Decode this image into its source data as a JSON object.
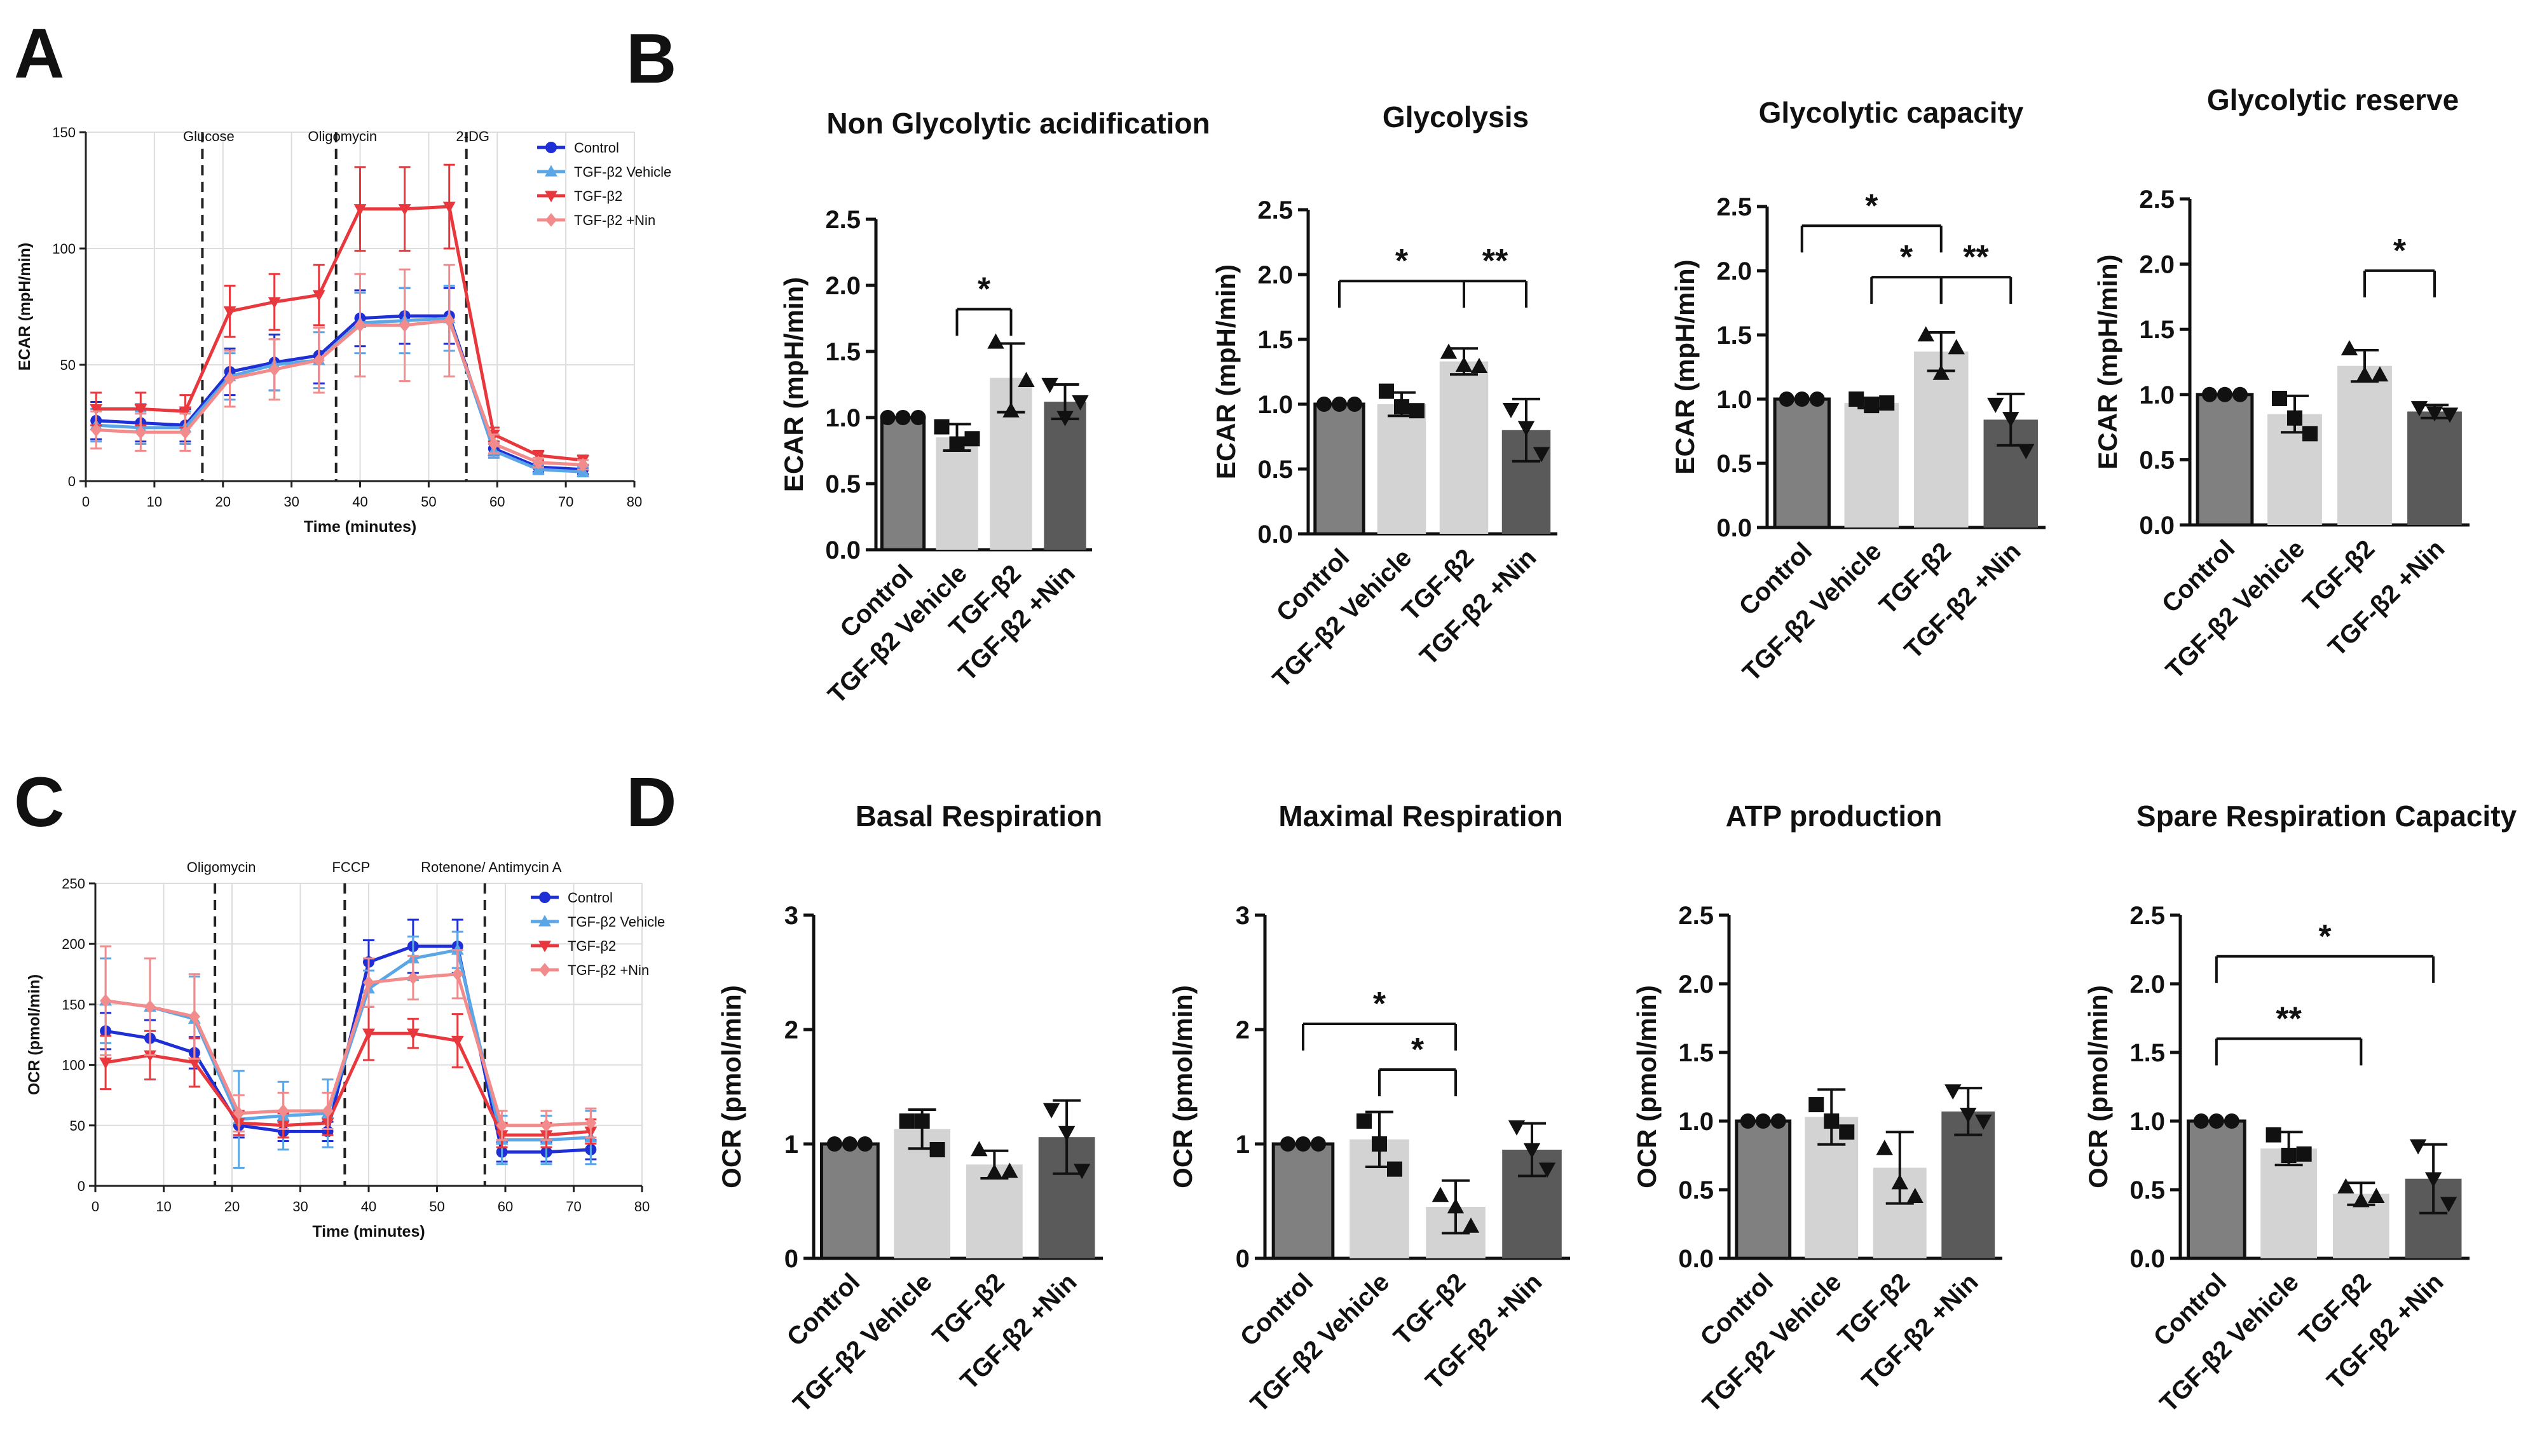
{
  "panel_labels": {
    "A": "A",
    "B": "B",
    "C": "C",
    "D": "D"
  },
  "colors": {
    "control": "#1f2fd6",
    "vehicle": "#5aa6e6",
    "tgf": "#e8383d",
    "nin": "#f28b8b",
    "bar_control": "#808080",
    "bar_vehicle": "#d3d3d3",
    "bar_tgf": "#d3d3d3",
    "bar_nin": "#5a5a5a"
  },
  "chart_data": [
    {
      "id": "A",
      "type": "line",
      "xlabel": "Time (minutes)",
      "ylabel": "ECAR (mpH/min)",
      "xlim": [
        0,
        80
      ],
      "ylim": [
        0,
        150
      ],
      "xticks": [
        0,
        10,
        20,
        30,
        40,
        50,
        60,
        70,
        80
      ],
      "yticks": [
        0,
        50,
        100,
        150
      ],
      "grid": true,
      "injections": [
        {
          "label": "Glucose",
          "x": 17
        },
        {
          "label": "Oligomycin",
          "x": 36.5
        },
        {
          "label": "2-DG",
          "x": 55.5
        }
      ],
      "x": [
        1.5,
        8,
        14.5,
        21,
        27.5,
        34,
        40,
        46.5,
        53,
        59.5,
        66,
        72.5
      ],
      "series": [
        {
          "name": "Control",
          "color_key": "control",
          "marker": "circle",
          "values": [
            26,
            25,
            24,
            47,
            51,
            54,
            70,
            71,
            71,
            14,
            6,
            5
          ],
          "errors": [
            8,
            8,
            7,
            10,
            12,
            12,
            12,
            12,
            12,
            3,
            2,
            2
          ]
        },
        {
          "name": "TGF-β2 Vehicle",
          "color_key": "vehicle",
          "marker": "triangle-up",
          "values": [
            24,
            23,
            23,
            45,
            50,
            52,
            68,
            69,
            70,
            13,
            5,
            4
          ],
          "errors": [
            7,
            7,
            7,
            10,
            11,
            12,
            13,
            14,
            14,
            3,
            2,
            2
          ]
        },
        {
          "name": "TGF-β2",
          "color_key": "tgf",
          "marker": "triangle-down",
          "values": [
            31,
            31,
            30,
            73,
            77,
            80,
            117,
            117,
            118,
            20,
            11,
            9
          ],
          "errors": [
            7,
            7,
            7,
            11,
            12,
            13,
            18,
            18,
            18,
            3,
            2,
            2
          ]
        },
        {
          "name": "TGF-β2 +Nin",
          "color_key": "nin",
          "marker": "diamond",
          "values": [
            22,
            21,
            21,
            44,
            48,
            52,
            67,
            67,
            69,
            16,
            8,
            7
          ],
          "errors": [
            8,
            8,
            8,
            12,
            13,
            14,
            22,
            24,
            24,
            4,
            2,
            2
          ]
        }
      ]
    },
    {
      "id": "C",
      "type": "line",
      "xlabel": "Time (minutes)",
      "ylabel": "OCR (pmol/min)",
      "xlim": [
        0,
        80
      ],
      "ylim": [
        0,
        250
      ],
      "xticks": [
        0,
        10,
        20,
        30,
        40,
        50,
        60,
        70,
        80
      ],
      "yticks": [
        0,
        50,
        100,
        150,
        200,
        250
      ],
      "grid": true,
      "injections": [
        {
          "label": "Oligomycin",
          "x": 17.5
        },
        {
          "label": "FCCP",
          "x": 36.5
        },
        {
          "label": "Rotenone/ Antimycin A",
          "x": 57
        }
      ],
      "x": [
        1.5,
        8,
        14.5,
        21,
        27.5,
        34,
        40,
        46.5,
        53,
        59.5,
        66,
        72.5
      ],
      "series": [
        {
          "name": "Control",
          "color_key": "control",
          "marker": "circle",
          "values": [
            128,
            122,
            110,
            50,
            45,
            45,
            185,
            198,
            198,
            28,
            28,
            30
          ],
          "errors": [
            15,
            15,
            13,
            10,
            8,
            8,
            18,
            22,
            22,
            8,
            8,
            8
          ]
        },
        {
          "name": "TGF-β2 Vehicle",
          "color_key": "vehicle",
          "marker": "triangle-up",
          "values": [
            153,
            148,
            138,
            55,
            58,
            60,
            163,
            188,
            195,
            38,
            38,
            40
          ],
          "errors": [
            35,
            40,
            35,
            40,
            28,
            28,
            15,
            18,
            15,
            20,
            20,
            22
          ]
        },
        {
          "name": "TGF-β2",
          "color_key": "tgf",
          "marker": "triangle-down",
          "values": [
            102,
            108,
            102,
            52,
            50,
            52,
            126,
            126,
            120,
            42,
            42,
            45
          ],
          "errors": [
            22,
            20,
            20,
            10,
            10,
            10,
            22,
            12,
            22,
            10,
            10,
            10
          ]
        },
        {
          "name": "TGF-β2 +Nin",
          "color_key": "nin",
          "marker": "diamond",
          "values": [
            153,
            148,
            140,
            60,
            62,
            62,
            168,
            172,
            175,
            50,
            50,
            52
          ],
          "errors": [
            45,
            40,
            35,
            15,
            15,
            15,
            20,
            18,
            20,
            12,
            12,
            12
          ]
        }
      ]
    },
    {
      "id": "B1",
      "type": "bar",
      "title": "Non Glycolytic acidification",
      "ylabel": "ECAR (mpH/min)",
      "ylim": [
        0,
        2.5
      ],
      "ytick_labels": [
        "0.0",
        "0.5",
        "1.0",
        "1.5",
        "2.0",
        "2.5"
      ],
      "categories": [
        "Control",
        "TGF-β2 Vehicle",
        "TGF-β2",
        "TGF-β2 +Nin"
      ],
      "values": [
        1.0,
        0.85,
        1.3,
        1.12
      ],
      "errors": [
        0.0,
        0.1,
        0.26,
        0.13
      ],
      "points": [
        [
          1.0,
          1.0,
          1.0
        ],
        [
          0.93,
          0.8,
          0.84
        ],
        [
          1.57,
          1.05,
          1.28
        ],
        [
          1.25,
          1.0,
          1.12
        ]
      ],
      "markers": [
        "circle",
        "square",
        "triangle-up",
        "triangle-down"
      ],
      "brackets": [
        {
          "from": 1,
          "to": 2,
          "y": 1.82,
          "label": "*",
          "ticks": "both"
        }
      ]
    },
    {
      "id": "B2",
      "type": "bar",
      "title": "Glycolysis",
      "ylabel": "ECAR (mpH/min)",
      "ylim": [
        0,
        2.5
      ],
      "ytick_labels": [
        "0.0",
        "0.5",
        "1.0",
        "1.5",
        "2.0",
        "2.5"
      ],
      "categories": [
        "Control",
        "TGF-β2 Vehicle",
        "TGF-β2",
        "TGF-β2 +Nin"
      ],
      "values": [
        1.0,
        1.0,
        1.33,
        0.8
      ],
      "errors": [
        0.0,
        0.09,
        0.1,
        0.24
      ],
      "points": [
        [
          1.0,
          1.0,
          1.0
        ],
        [
          1.1,
          0.98,
          0.95
        ],
        [
          1.4,
          1.3,
          1.29
        ],
        [
          0.96,
          0.82,
          0.62
        ]
      ],
      "markers": [
        "circle",
        "square",
        "triangle-up",
        "triangle-down"
      ],
      "brackets": [
        {
          "from": 0,
          "to": 2,
          "y": 1.95,
          "label": "*",
          "ticks": "both"
        },
        {
          "from": 2,
          "to": 3,
          "y": 1.95,
          "label": "**",
          "ticks": "both"
        }
      ]
    },
    {
      "id": "B3",
      "type": "bar",
      "title": "Glycolytic capacity",
      "ylabel": "ECAR (mpH/min)",
      "ylim": [
        0,
        2.5
      ],
      "ytick_labels": [
        "0.0",
        "0.5",
        "1.0",
        "1.5",
        "2.0",
        "2.5"
      ],
      "categories": [
        "Control",
        "TGF-β2 Vehicle",
        "TGF-β2",
        "TGF-β2 +Nin"
      ],
      "values": [
        1.0,
        0.97,
        1.37,
        0.84
      ],
      "errors": [
        0.0,
        0.04,
        0.15,
        0.2
      ],
      "points": [
        [
          1.0,
          1.0,
          1.0
        ],
        [
          1.0,
          0.95,
          0.97
        ],
        [
          1.5,
          1.2,
          1.4
        ],
        [
          0.96,
          0.85,
          0.6
        ]
      ],
      "markers": [
        "circle",
        "square",
        "triangle-up",
        "triangle-down"
      ],
      "brackets": [
        {
          "from": 0,
          "to": 2,
          "y": 2.35,
          "label": "*",
          "ticks": "both"
        },
        {
          "from": 1,
          "to": 2,
          "y": 1.95,
          "label": "*",
          "ticks": "both"
        },
        {
          "from": 2,
          "to": 3,
          "y": 1.95,
          "label": "**",
          "ticks": "both"
        }
      ]
    },
    {
      "id": "B4",
      "type": "bar",
      "title": "Glycolytic reserve",
      "ylabel": "ECAR (mpH/min)",
      "ylim": [
        0,
        2.5
      ],
      "ytick_labels": [
        "0.0",
        "0.5",
        "1.0",
        "1.5",
        "2.0",
        "2.5"
      ],
      "categories": [
        "Control",
        "TGF-β2 Vehicle",
        "TGF-β2",
        "TGF-β2 +Nin"
      ],
      "values": [
        1.0,
        0.85,
        1.22,
        0.87
      ],
      "errors": [
        0.0,
        0.14,
        0.12,
        0.05
      ],
      "points": [
        [
          1.0,
          1.0,
          1.0
        ],
        [
          0.97,
          0.82,
          0.7
        ],
        [
          1.35,
          1.15,
          1.15
        ],
        [
          0.9,
          0.86,
          0.85
        ]
      ],
      "markers": [
        "circle",
        "square",
        "triangle-up",
        "triangle-down"
      ],
      "brackets": [
        {
          "from": 2,
          "to": 3,
          "y": 1.95,
          "label": "*",
          "ticks": "right"
        }
      ]
    },
    {
      "id": "D1",
      "type": "bar",
      "title": "Basal Respiration",
      "ylabel": "OCR (pmol/min)",
      "ylim": [
        0,
        3
      ],
      "ytick_labels": [
        "0",
        "1",
        "2",
        "3"
      ],
      "categories": [
        "Control",
        "TGF-β2 Vehicle",
        "TGF-β2",
        "TGF-β2 +Nin"
      ],
      "values": [
        1.0,
        1.13,
        0.82,
        1.06
      ],
      "errors": [
        0.0,
        0.17,
        0.12,
        0.32
      ],
      "points": [
        [
          1.0,
          1.0,
          1.0
        ],
        [
          1.2,
          1.2,
          0.95
        ],
        [
          0.95,
          0.75,
          0.76
        ],
        [
          1.3,
          1.1,
          0.77
        ]
      ],
      "markers": [
        "circle",
        "square",
        "triangle-up",
        "triangle-down"
      ],
      "brackets": []
    },
    {
      "id": "D2",
      "type": "bar",
      "title": "Maximal Respiration",
      "ylabel": "OCR (pmol/min)",
      "ylim": [
        0,
        3
      ],
      "ytick_labels": [
        "0",
        "1",
        "2",
        "3"
      ],
      "categories": [
        "Control",
        "TGF-β2 Vehicle",
        "TGF-β2",
        "TGF-β2 +Nin"
      ],
      "values": [
        1.0,
        1.04,
        0.45,
        0.95
      ],
      "errors": [
        0.0,
        0.24,
        0.23,
        0.23
      ],
      "points": [
        [
          1.0,
          1.0,
          1.0
        ],
        [
          1.2,
          1.0,
          0.78
        ],
        [
          0.55,
          0.45,
          0.28
        ],
        [
          1.15,
          0.95,
          0.78
        ]
      ],
      "markers": [
        "circle",
        "square",
        "triangle-up",
        "triangle-down"
      ],
      "brackets": [
        {
          "from": 0,
          "to": 2,
          "y": 2.05,
          "label": "*",
          "ticks": "both"
        },
        {
          "from": 1,
          "to": 2,
          "y": 1.65,
          "label": "*",
          "ticks": "both"
        }
      ]
    },
    {
      "id": "D3",
      "type": "bar",
      "title": "ATP production",
      "ylabel": "OCR (pmol/min)",
      "ylim": [
        0,
        2.5
      ],
      "ytick_labels": [
        "0.0",
        "0.5",
        "1.0",
        "1.5",
        "2.0",
        "2.5"
      ],
      "categories": [
        "Control",
        "TGF-β2 Vehicle",
        "TGF-β2",
        "TGF-β2 +Nin"
      ],
      "values": [
        1.0,
        1.03,
        0.66,
        1.07
      ],
      "errors": [
        0.0,
        0.2,
        0.26,
        0.17
      ],
      "points": [
        [
          1.0,
          1.0,
          1.0
        ],
        [
          1.12,
          1.0,
          0.92
        ],
        [
          0.8,
          0.55,
          0.45
        ],
        [
          1.22,
          1.05,
          1.0
        ]
      ],
      "markers": [
        "circle",
        "square",
        "triangle-up",
        "triangle-down"
      ],
      "brackets": []
    },
    {
      "id": "D4",
      "type": "bar",
      "title": "Spare Respiration Capacity",
      "ylabel": "OCR (pmol/min)",
      "ylim": [
        0,
        2.5
      ],
      "ytick_labels": [
        "0.0",
        "0.5",
        "1.0",
        "1.5",
        "2.0",
        "2.5"
      ],
      "categories": [
        "Control",
        "TGF-β2 Vehicle",
        "TGF-β2",
        "TGF-β2 +Nin"
      ],
      "values": [
        1.0,
        0.8,
        0.47,
        0.58
      ],
      "errors": [
        0.0,
        0.12,
        0.08,
        0.25
      ],
      "points": [
        [
          1.0,
          1.0,
          1.0
        ],
        [
          0.9,
          0.75,
          0.76
        ],
        [
          0.52,
          0.42,
          0.45
        ],
        [
          0.82,
          0.58,
          0.4
        ]
      ],
      "markers": [
        "circle",
        "square",
        "triangle-up",
        "triangle-down"
      ],
      "brackets": [
        {
          "from": 0,
          "to": 3,
          "y": 2.2,
          "label": "*",
          "ticks": "right"
        },
        {
          "from": 0,
          "to": 2,
          "y": 1.6,
          "label": "**",
          "ticks": "right"
        }
      ]
    }
  ]
}
